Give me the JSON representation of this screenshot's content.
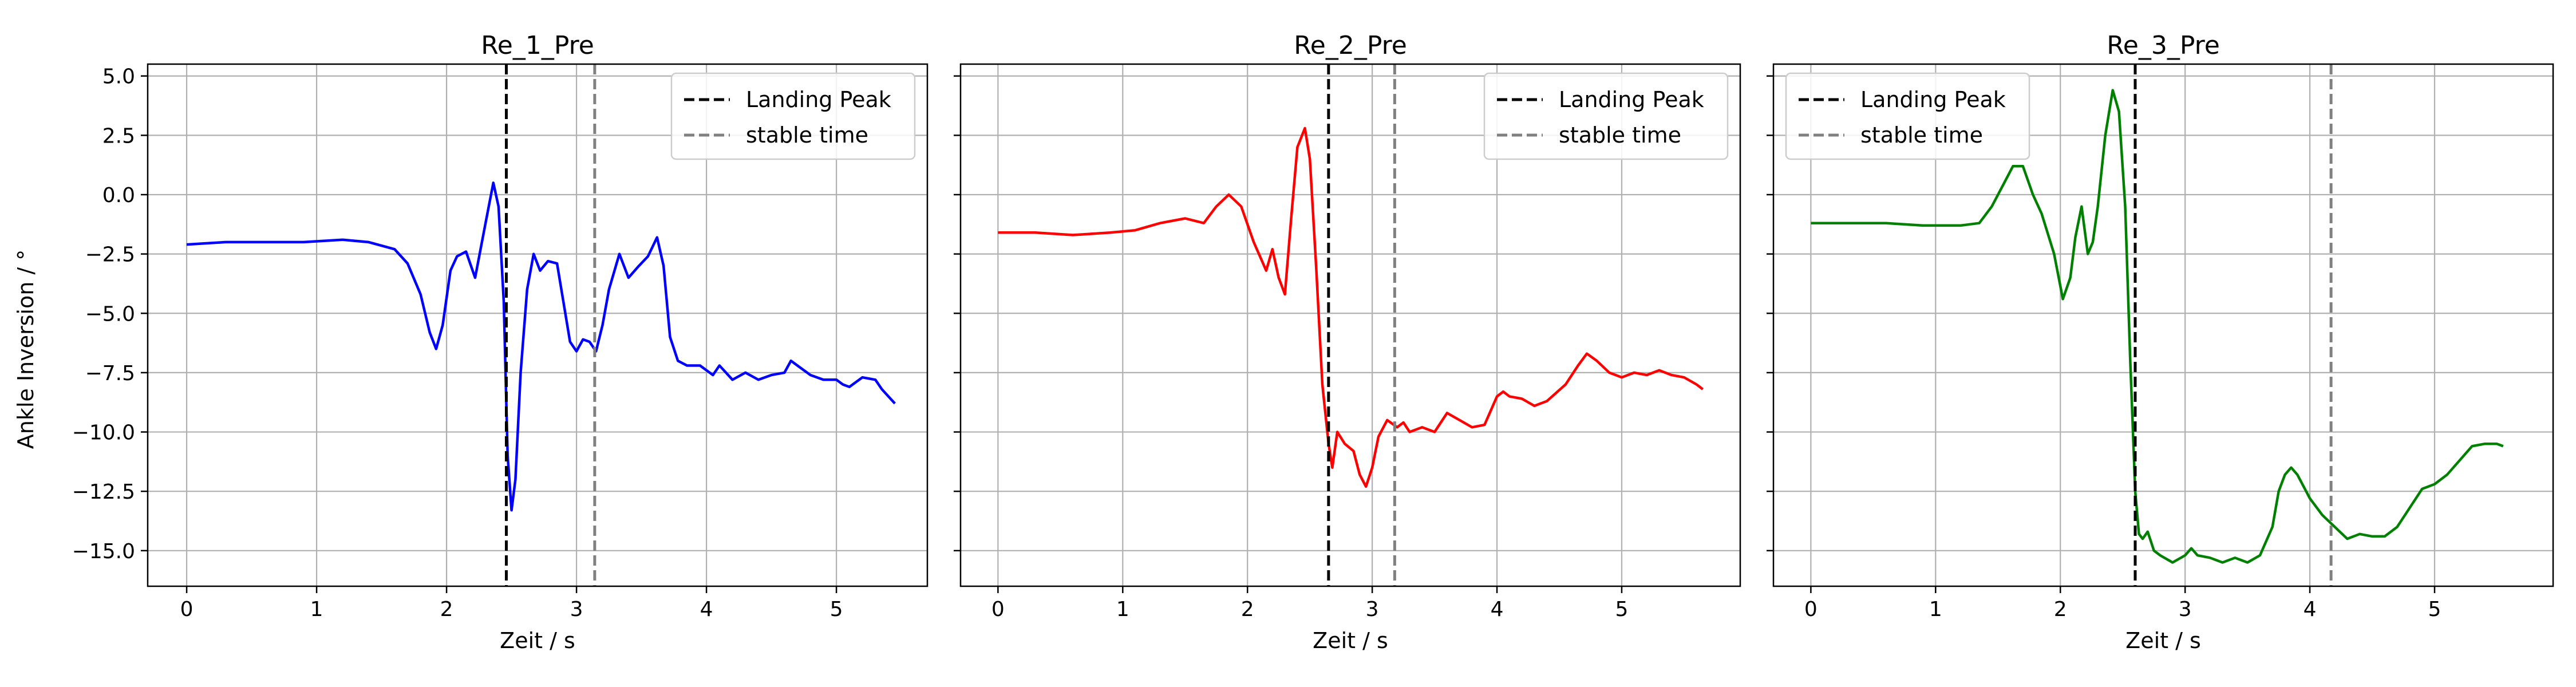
{
  "figure": {
    "ylabel": "Ankle Inversion / °"
  },
  "legend_labels": {
    "landing": "Landing Peak",
    "stable": "stable time"
  },
  "chart_data": [
    {
      "type": "line",
      "title": "Re_1_Pre",
      "xlabel": "Zeit / s",
      "ylabel": "Ankle Inversion / °",
      "xlim": [
        -0.3,
        5.7
      ],
      "ylim": [
        -16.5,
        5.5
      ],
      "xticks": [
        0,
        1,
        2,
        3,
        4,
        5
      ],
      "yticks": [
        5.0,
        2.5,
        0.0,
        -2.5,
        -5.0,
        -7.5,
        -10.0,
        -12.5,
        -15.0
      ],
      "ytick_labels": [
        "5.0",
        "2.5",
        "0.0",
        "−2.5",
        "−5.0",
        "−7.5",
        "−10.0",
        "−12.5",
        "−15.0"
      ],
      "grid": true,
      "legend_position": "upper right",
      "series": [
        {
          "color": "#0000ff",
          "x": [
            0,
            0.3,
            0.6,
            0.9,
            1.2,
            1.4,
            1.6,
            1.7,
            1.8,
            1.87,
            1.92,
            1.97,
            2.03,
            2.08,
            2.15,
            2.22,
            2.3,
            2.36,
            2.4,
            2.44,
            2.47,
            2.5,
            2.53,
            2.57,
            2.62,
            2.67,
            2.72,
            2.78,
            2.85,
            2.95,
            3.0,
            3.05,
            3.1,
            3.15,
            3.2,
            3.25,
            3.33,
            3.4,
            3.48,
            3.55,
            3.62,
            3.67,
            3.72,
            3.78,
            3.85,
            3.95,
            4.05,
            4.1,
            4.15,
            4.2,
            4.3,
            4.4,
            4.5,
            4.6,
            4.65,
            4.7,
            4.8,
            4.9,
            5.0,
            5.05,
            5.1,
            5.2,
            5.3,
            5.35,
            5.4,
            5.45
          ],
          "y": [
            -2.1,
            -2.0,
            -2.0,
            -2.0,
            -1.9,
            -2.0,
            -2.3,
            -2.9,
            -4.2,
            -5.8,
            -6.5,
            -5.5,
            -3.2,
            -2.6,
            -2.4,
            -3.5,
            -1.2,
            0.5,
            -0.5,
            -4.5,
            -11.0,
            -13.3,
            -12.0,
            -7.5,
            -4.0,
            -2.5,
            -3.2,
            -2.8,
            -2.9,
            -6.2,
            -6.6,
            -6.1,
            -6.2,
            -6.6,
            -5.5,
            -4.0,
            -2.5,
            -3.5,
            -3.0,
            -2.6,
            -1.8,
            -3.0,
            -6.0,
            -7.0,
            -7.2,
            -7.2,
            -7.6,
            -7.2,
            -7.5,
            -7.8,
            -7.5,
            -7.8,
            -7.6,
            -7.5,
            -7.0,
            -7.2,
            -7.6,
            -7.8,
            -7.8,
            -8.0,
            -8.1,
            -7.7,
            -7.8,
            -8.2,
            -8.5,
            -8.8
          ]
        }
      ],
      "vlines": [
        {
          "label": "Landing Peak",
          "x": 2.46,
          "color": "#000000"
        },
        {
          "label": "stable time",
          "x": 3.14,
          "color": "#808080"
        }
      ]
    },
    {
      "type": "line",
      "title": "Re_2_Pre",
      "xlabel": "Zeit / s",
      "ylabel": "",
      "xlim": [
        -0.3,
        5.95
      ],
      "ylim": [
        -16.5,
        5.5
      ],
      "xticks": [
        0,
        1,
        2,
        3,
        4,
        5
      ],
      "yticks": [
        5.0,
        2.5,
        0.0,
        -2.5,
        -5.0,
        -7.5,
        -10.0,
        -12.5,
        -15.0
      ],
      "grid": true,
      "legend_position": "upper right",
      "series": [
        {
          "color": "#ff0000",
          "x": [
            0,
            0.3,
            0.6,
            0.9,
            1.1,
            1.3,
            1.5,
            1.65,
            1.75,
            1.85,
            1.95,
            2.05,
            2.15,
            2.2,
            2.25,
            2.3,
            2.35,
            2.4,
            2.46,
            2.5,
            2.55,
            2.6,
            2.65,
            2.68,
            2.72,
            2.78,
            2.85,
            2.9,
            2.95,
            3.0,
            3.05,
            3.12,
            3.2,
            3.25,
            3.3,
            3.4,
            3.5,
            3.6,
            3.7,
            3.8,
            3.9,
            4.0,
            4.05,
            4.1,
            4.2,
            4.3,
            4.4,
            4.55,
            4.65,
            4.72,
            4.8,
            4.9,
            5.0,
            5.1,
            5.2,
            5.3,
            5.4,
            5.5,
            5.6,
            5.65
          ],
          "y": [
            -1.6,
            -1.6,
            -1.7,
            -1.6,
            -1.5,
            -1.2,
            -1.0,
            -1.2,
            -0.5,
            0.0,
            -0.5,
            -2.0,
            -3.2,
            -2.3,
            -3.5,
            -4.2,
            -1.0,
            2.0,
            2.8,
            1.5,
            -3.0,
            -8.0,
            -10.5,
            -11.5,
            -10.0,
            -10.5,
            -10.8,
            -11.8,
            -12.3,
            -11.5,
            -10.2,
            -9.5,
            -9.8,
            -9.6,
            -10.0,
            -9.8,
            -10.0,
            -9.2,
            -9.5,
            -9.8,
            -9.7,
            -8.5,
            -8.3,
            -8.5,
            -8.6,
            -8.9,
            -8.7,
            -8.0,
            -7.2,
            -6.7,
            -7.0,
            -7.5,
            -7.7,
            -7.5,
            -7.6,
            -7.4,
            -7.6,
            -7.7,
            -8.0,
            -8.2
          ]
        }
      ],
      "vlines": [
        {
          "label": "Landing Peak",
          "x": 2.65,
          "color": "#000000"
        },
        {
          "label": "stable time",
          "x": 3.18,
          "color": "#808080"
        }
      ]
    },
    {
      "type": "line",
      "title": "Re_3_Pre",
      "xlabel": "Zeit / s",
      "ylabel": "",
      "xlim": [
        -0.3,
        5.95
      ],
      "ylim": [
        -16.5,
        5.5
      ],
      "xticks": [
        0,
        1,
        2,
        3,
        4,
        5
      ],
      "yticks": [
        5.0,
        2.5,
        0.0,
        -2.5,
        -5.0,
        -7.5,
        -10.0,
        -12.5,
        -15.0
      ],
      "grid": true,
      "legend_position": "upper left",
      "series": [
        {
          "color": "#008000",
          "x": [
            0,
            0.3,
            0.6,
            0.9,
            1.2,
            1.35,
            1.45,
            1.55,
            1.62,
            1.7,
            1.78,
            1.85,
            1.95,
            2.02,
            2.08,
            2.12,
            2.17,
            2.22,
            2.26,
            2.3,
            2.36,
            2.42,
            2.47,
            2.52,
            2.56,
            2.6,
            2.63,
            2.66,
            2.7,
            2.75,
            2.8,
            2.9,
            3.0,
            3.05,
            3.1,
            3.2,
            3.3,
            3.4,
            3.5,
            3.6,
            3.7,
            3.75,
            3.8,
            3.85,
            3.9,
            4.0,
            4.1,
            4.2,
            4.3,
            4.4,
            4.5,
            4.6,
            4.7,
            4.8,
            4.9,
            5.0,
            5.1,
            5.2,
            5.3,
            5.4,
            5.5,
            5.55
          ],
          "y": [
            -1.2,
            -1.2,
            -1.2,
            -1.3,
            -1.3,
            -1.2,
            -0.5,
            0.5,
            1.2,
            1.2,
            0.0,
            -0.8,
            -2.5,
            -4.4,
            -3.5,
            -1.8,
            -0.5,
            -2.5,
            -2.0,
            -0.5,
            2.5,
            4.4,
            3.5,
            -0.5,
            -7.0,
            -12.5,
            -14.3,
            -14.5,
            -14.2,
            -15.0,
            -15.2,
            -15.5,
            -15.2,
            -14.9,
            -15.2,
            -15.3,
            -15.5,
            -15.3,
            -15.5,
            -15.2,
            -14.0,
            -12.5,
            -11.8,
            -11.5,
            -11.8,
            -12.8,
            -13.5,
            -14.0,
            -14.5,
            -14.3,
            -14.4,
            -14.4,
            -14.0,
            -13.2,
            -12.4,
            -12.2,
            -11.8,
            -11.2,
            -10.6,
            -10.5,
            -10.5,
            -10.6
          ]
        }
      ],
      "vlines": [
        {
          "label": "Landing Peak",
          "x": 2.6,
          "color": "#000000"
        },
        {
          "label": "stable time",
          "x": 4.17,
          "color": "#808080"
        }
      ]
    }
  ]
}
